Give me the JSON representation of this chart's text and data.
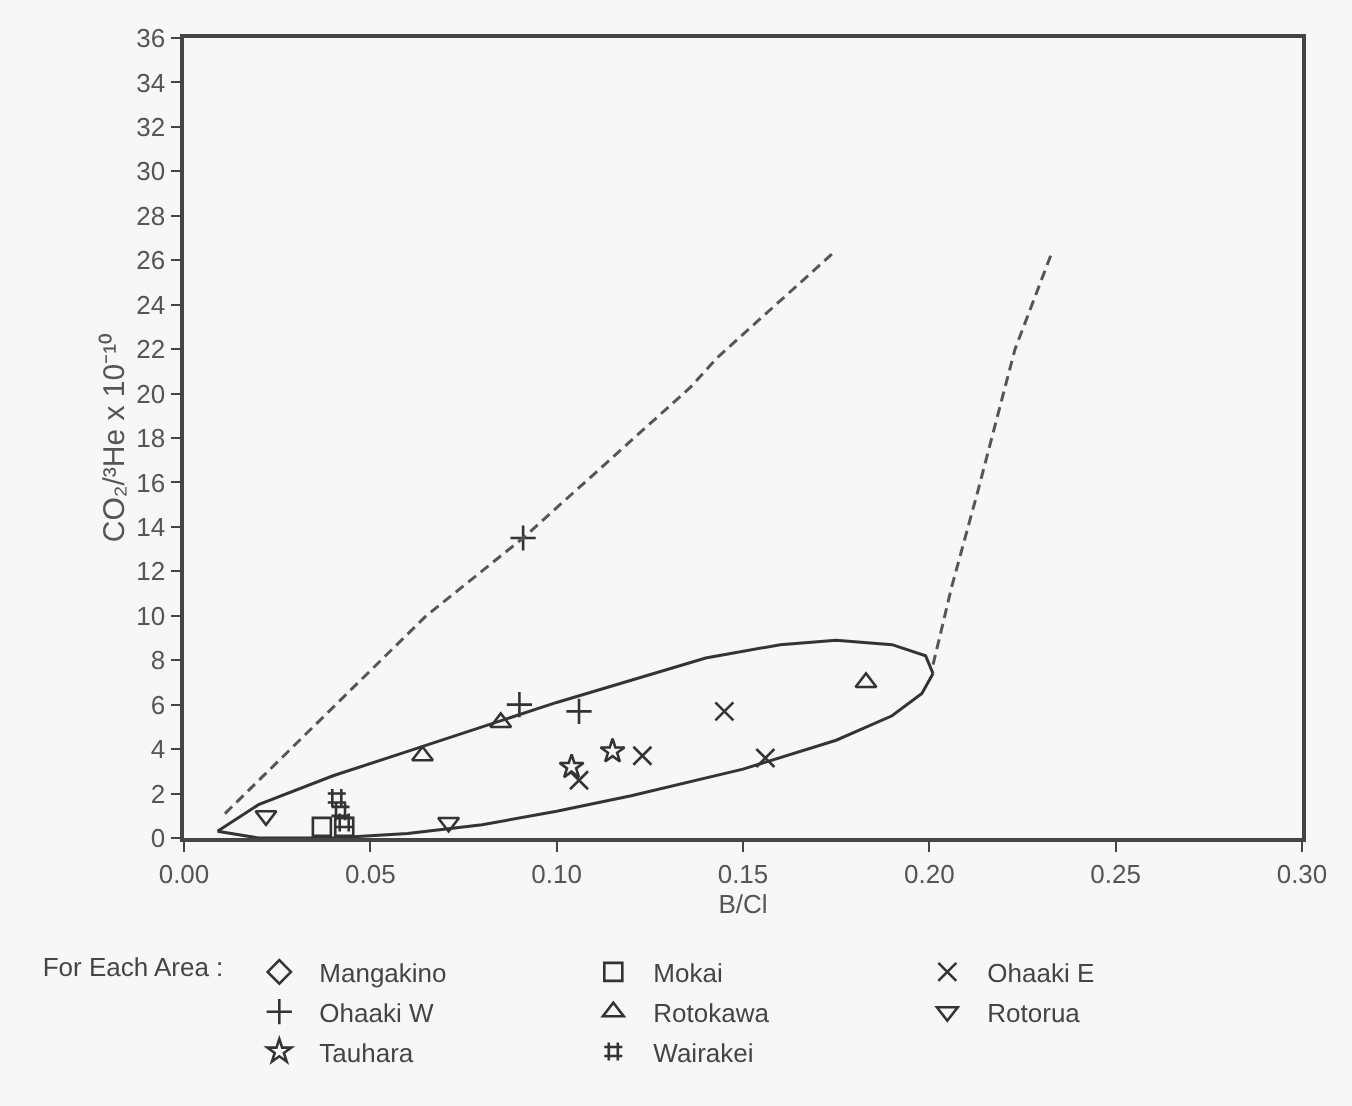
{
  "chart_data": {
    "type": "scatter",
    "xlabel": "B/Cl",
    "ylabel": "CO₂/³He x 10⁻¹⁰",
    "legend_title": "For Each Area :",
    "xlim": [
      0,
      0.3
    ],
    "xticks": [
      {
        "value": 0,
        "label": "0.00"
      },
      {
        "value": 0.05,
        "label": "0.05"
      },
      {
        "value": 0.1,
        "label": "0.10"
      },
      {
        "value": 0.15,
        "label": "0.15"
      },
      {
        "value": 0.2,
        "label": "0.20"
      },
      {
        "value": 0.25,
        "label": "0.25"
      },
      {
        "value": 0.3,
        "label": "0.30"
      }
    ],
    "ylim": [
      0,
      36
    ],
    "yticks": [
      0,
      2,
      4,
      6,
      8,
      10,
      12,
      14,
      16,
      18,
      20,
      22,
      24,
      26,
      28,
      30,
      32,
      34,
      36
    ],
    "grid": false,
    "legend": "bottom",
    "series": [
      {
        "name": "Mangakino",
        "color": "#333333",
        "marker": "diamond"
      },
      {
        "name": "Mokai",
        "color": "#333333",
        "marker": "square",
        "x": [
          0.037,
          0.043
        ],
        "values": [
          0.5,
          0.5
        ]
      },
      {
        "name": "Ohaaki E",
        "color": "#333333",
        "marker": "x",
        "x": [
          0.106,
          0.123,
          0.145,
          0.156
        ],
        "values": [
          2.6,
          3.7,
          5.7,
          3.6
        ]
      },
      {
        "name": "Ohaaki W",
        "color": "#333333",
        "marker": "cross",
        "x": [
          0.09,
          0.106,
          0.091
        ],
        "values": [
          6.0,
          5.7,
          13.5
        ]
      },
      {
        "name": "Rotokawa",
        "color": "#333333",
        "marker": "triangle",
        "x": [
          0.064,
          0.085,
          0.183
        ],
        "values": [
          3.7,
          5.2,
          7.0
        ]
      },
      {
        "name": "Rotorua",
        "color": "#333333",
        "marker": "triangle-down",
        "x": [
          0.022,
          0.071
        ],
        "values": [
          1.0,
          0.7
        ]
      },
      {
        "name": "Tauhara",
        "color": "#333333",
        "marker": "star",
        "x": [
          0.104,
          0.115
        ],
        "values": [
          3.2,
          3.9
        ]
      },
      {
        "name": "Wairakei",
        "color": "#333333",
        "x": [
          0.041,
          0.042,
          0.043
        ],
        "values": [
          1.8,
          1.2,
          0.7
        ]
      },
      {
        "type": "line",
        "color": "#333333",
        "line_style": "solid",
        "x": [
          0.009,
          0.02,
          0.04,
          0.06,
          0.08,
          0.1,
          0.12,
          0.14,
          0.16,
          0.175,
          0.19,
          0.199,
          0.201
        ],
        "values": [
          0.3,
          1.5,
          2.8,
          3.9,
          5.0,
          6.1,
          7.1,
          8.1,
          8.7,
          8.9,
          8.7,
          8.2,
          7.4
        ]
      },
      {
        "type": "line",
        "color": "#333333",
        "line_style": "solid",
        "x": [
          0.009,
          0.02,
          0.04,
          0.06,
          0.08,
          0.1,
          0.12,
          0.15,
          0.175,
          0.19,
          0.198,
          0.201
        ],
        "values": [
          0.3,
          0.0,
          0.0,
          0.2,
          0.6,
          1.2,
          1.9,
          3.1,
          4.4,
          5.5,
          6.5,
          7.4
        ]
      },
      {
        "type": "line",
        "color": "#555555",
        "line_style": "dashed",
        "x": [
          0.011,
          0.065,
          0.091,
          0.136,
          0.143,
          0.174
        ],
        "values": [
          1.1,
          10,
          13.5,
          20.3,
          21.6,
          26.3
        ]
      },
      {
        "type": "line",
        "color": "#555555",
        "line_style": "dashed",
        "x": [
          0.201,
          0.206,
          0.213,
          0.223,
          0.233
        ],
        "values": [
          7.8,
          11.3,
          15.6,
          22,
          26.4
        ]
      }
    ]
  }
}
